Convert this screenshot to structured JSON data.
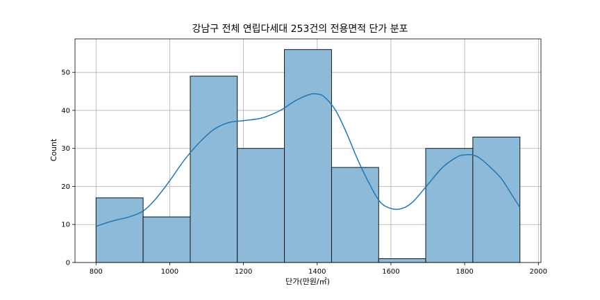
{
  "chart_data": {
    "type": "bar",
    "title": "강남구 전체 연립다세대 253건의 전용면적 단가 분포",
    "xlabel": "단가(만원/㎡)",
    "ylabel": "Count",
    "xlim": [
      743,
      2007
    ],
    "ylim": [
      0,
      58.8
    ],
    "xticks": [
      800,
      1000,
      1200,
      1400,
      1600,
      1800,
      2000
    ],
    "yticks": [
      0,
      10,
      20,
      30,
      40,
      50
    ],
    "grid": true,
    "bins": [
      {
        "x0": 800,
        "x1": 927.8,
        "count": 17
      },
      {
        "x0": 927.8,
        "x1": 1055.6,
        "count": 12
      },
      {
        "x0": 1055.6,
        "x1": 1183.3,
        "count": 49
      },
      {
        "x0": 1183.3,
        "x1": 1311.1,
        "count": 30
      },
      {
        "x0": 1311.1,
        "x1": 1438.9,
        "count": 56
      },
      {
        "x0": 1438.9,
        "x1": 1566.7,
        "count": 25
      },
      {
        "x0": 1566.7,
        "x1": 1694.4,
        "count": 1
      },
      {
        "x0": 1694.4,
        "x1": 1822.2,
        "count": 30
      },
      {
        "x0": 1822.2,
        "x1": 1950,
        "count": 33
      }
    ],
    "kde": {
      "x": [
        800,
        830,
        860,
        890,
        927,
        960,
        1000,
        1040,
        1080,
        1120,
        1160,
        1200,
        1250,
        1300,
        1340,
        1380,
        1400,
        1420,
        1450,
        1480,
        1510,
        1540,
        1570,
        1600,
        1630,
        1660,
        1700,
        1740,
        1780,
        1800,
        1820,
        1840,
        1870,
        1900,
        1930,
        1950
      ],
      "y": [
        9.5,
        10.5,
        11.3,
        12,
        13.5,
        16.5,
        21.5,
        27,
        31.5,
        35,
        36.8,
        37.3,
        38,
        40,
        42.5,
        44.2,
        44.3,
        43.5,
        40,
        34,
        27,
        21,
        16,
        14.2,
        14.2,
        16,
        20.5,
        25,
        27.8,
        28.3,
        28.3,
        27.5,
        25,
        22,
        17.5,
        14.5
      ]
    },
    "colors": {
      "bar_fill": "#8ebad9",
      "bar_edge": "#000000",
      "kde_line": "#1f77b4",
      "grid": "#b0b0b0"
    }
  }
}
